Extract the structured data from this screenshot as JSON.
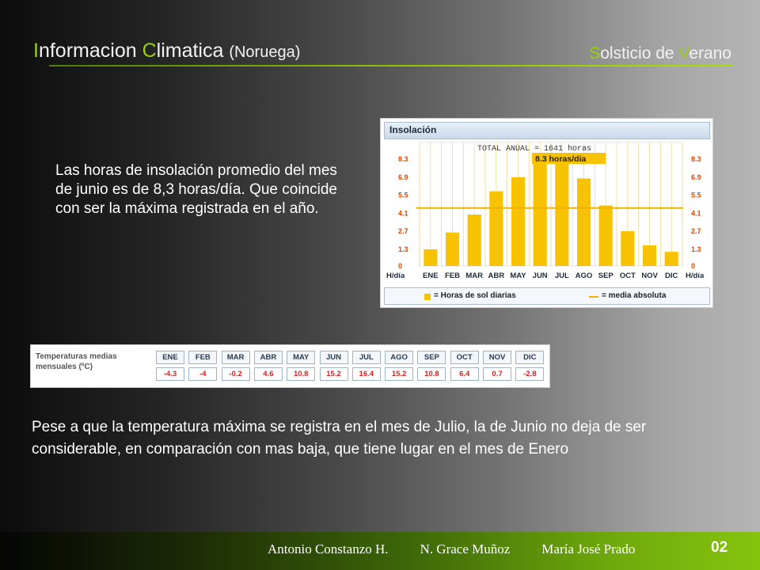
{
  "header": {
    "title_parts": [
      "I",
      "nformacion ",
      "C",
      "limatica ",
      "(Noruega)"
    ],
    "subtitle_parts": [
      "S",
      "olsticio de ",
      "V",
      "erano"
    ],
    "accent_color": "#9ad012"
  },
  "paragraph1": "Las horas de insolación promedio del mes de junio es de 8,3 horas/día. Que coincide con ser la máxima registrada en el año.",
  "paragraph2": "Pese a que la temperatura máxima se registra en el mes de Julio, la de Junio no deja de ser considerable, en comparación con mas baja, que tiene lugar en el mes de Enero",
  "chart_data": {
    "type": "bar",
    "title": "Insolación",
    "annotation_total": "TOTAL ANUAL = 1641 horas",
    "annotation_peak": "8.3 horas/día",
    "categories": [
      "ENE",
      "FEB",
      "MAR",
      "ABR",
      "MAY",
      "JUN",
      "JUL",
      "AGO",
      "SEP",
      "OCT",
      "NOV",
      "DIC"
    ],
    "values": [
      1.3,
      2.6,
      4.0,
      5.8,
      6.9,
      8.3,
      8.3,
      6.8,
      4.7,
      2.7,
      1.6,
      1.1
    ],
    "mean": 4.5,
    "ylim": [
      0,
      8.3
    ],
    "yticks": [
      "8.3",
      "6.9",
      "5.5",
      "4.1",
      "2.7",
      "1.3",
      "0"
    ],
    "ylabel": "H/día",
    "legend": [
      "= Horas de sol diarias",
      "= media absoluta"
    ],
    "colors": {
      "bar": "#f7c300",
      "mean": "#f0b400",
      "grid": "#f2d790"
    }
  },
  "temperature_table": {
    "label": "Temperaturas medias mensuales (ºC)",
    "months": [
      "ENE",
      "FEB",
      "MAR",
      "ABR",
      "MAY",
      "JUN",
      "JUL",
      "AGO",
      "SEP",
      "OCT",
      "NOV",
      "DIC"
    ],
    "values": [
      "-4.3",
      "-4",
      "-0.2",
      "4.6",
      "10.8",
      "15.2",
      "16.4",
      "15.2",
      "10.8",
      "6.4",
      "0.7",
      "-2.8"
    ]
  },
  "footer": {
    "authors": [
      "Antonio Constanzo H.",
      "N. Grace Muñoz",
      "María José Prado"
    ],
    "page": "02"
  }
}
